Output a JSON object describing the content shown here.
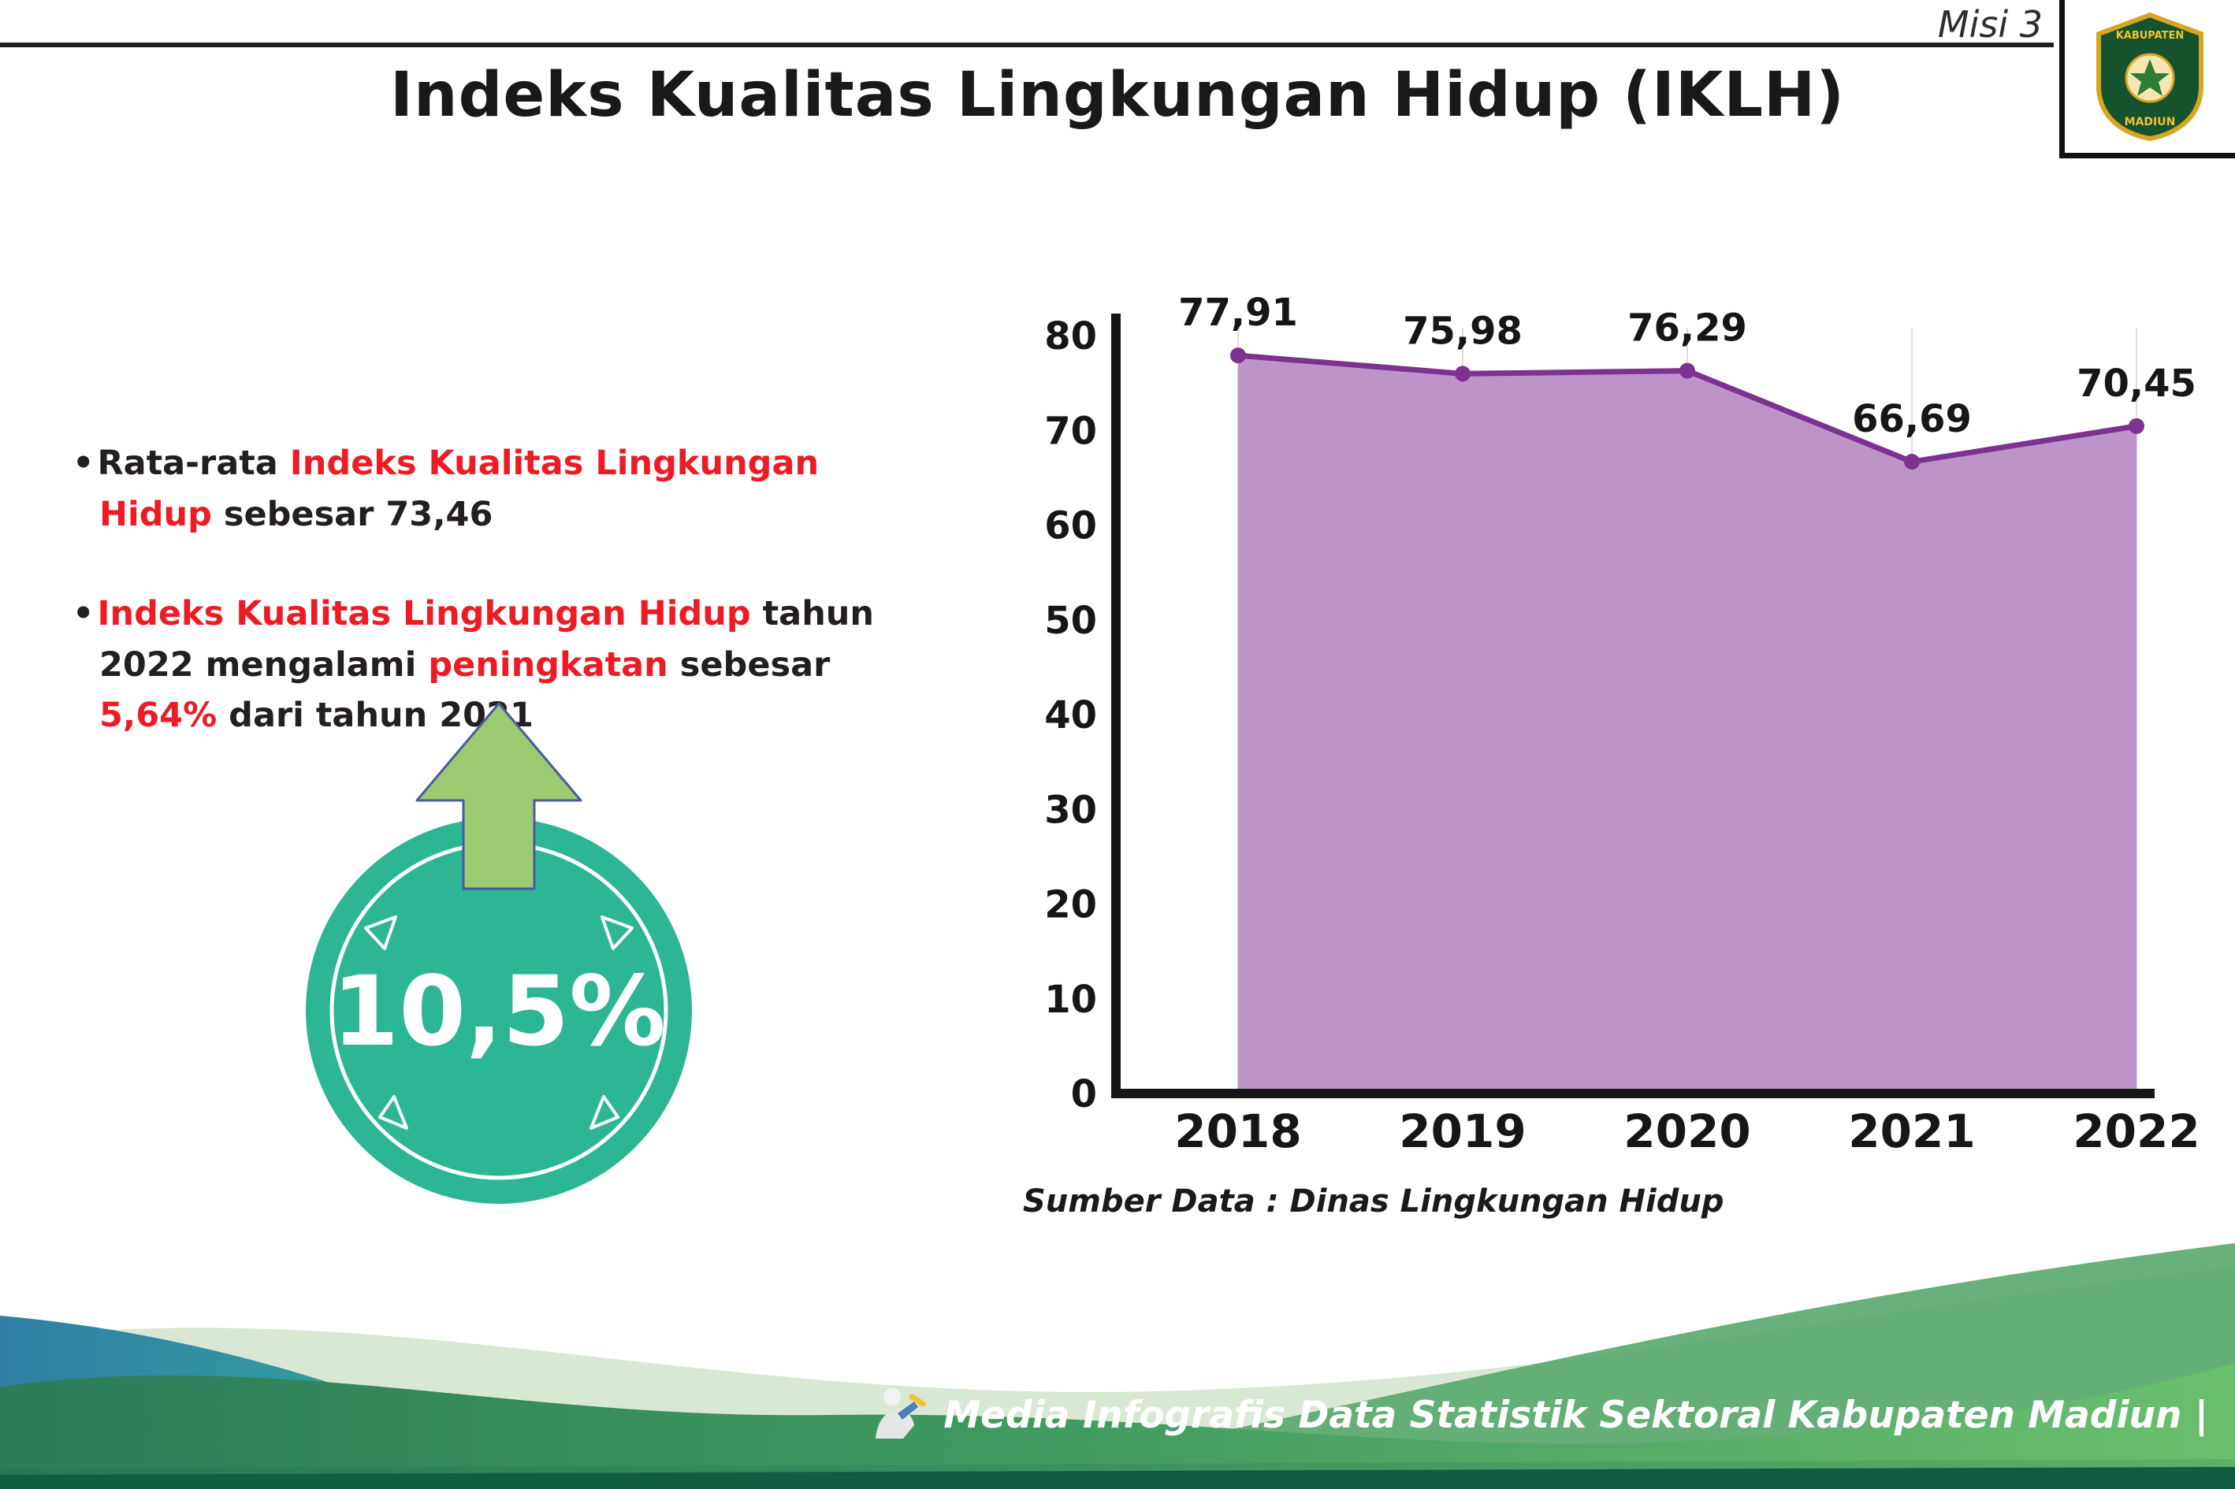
{
  "header": {
    "misi": "Misi 3",
    "title": "Indeks Kualitas Lingkungan Hidup (IKLH)",
    "logo_top": "KABUPATEN",
    "logo_bottom": "MADIUN"
  },
  "colors": {
    "red": "#ed1c24",
    "dark": "#231f20",
    "teal_circle": "#2cb694",
    "arrow_green": "#9cca70",
    "area_fill": "#bd93c8",
    "line_purple": "#7d3190",
    "axis_black": "#161616",
    "band_green": "#2d8556"
  },
  "bullets": [
    {
      "segments": [
        {
          "text": "Rata-rata ",
          "style": "dark"
        },
        {
          "text": "Indeks Kualitas Lingkungan Hidup",
          "style": "red"
        },
        {
          "text": " sebesar 73,46",
          "style": "dark"
        }
      ]
    },
    {
      "segments": [
        {
          "text": "Indeks Kualitas Lingkungan Hidup",
          "style": "red"
        },
        {
          "text": " tahun 2022 mengalami ",
          "style": "dark"
        },
        {
          "text": "peningkatan",
          "style": "red"
        },
        {
          "text": " sebesar ",
          "style": "dark"
        },
        {
          "text": "5,64%",
          "style": "red"
        },
        {
          "text": " dari tahun 2021",
          "style": "dark"
        }
      ]
    }
  ],
  "badge": {
    "value": "10,5%"
  },
  "chart_data": {
    "type": "area",
    "categories": [
      "2018",
      "2019",
      "2020",
      "2021",
      "2022"
    ],
    "series": [
      {
        "name": "IKLH",
        "values": [
          77.91,
          75.98,
          76.29,
          66.69,
          70.45
        ]
      }
    ],
    "value_labels": [
      "77,91",
      "75,98",
      "76,29",
      "66,69",
      "70,45"
    ],
    "title": "",
    "xlabel": "",
    "ylabel": "",
    "ylim": [
      0,
      80
    ],
    "yticks": [
      0,
      10,
      20,
      30,
      40,
      50,
      60,
      70,
      80
    ],
    "grid": "vertical-light",
    "legend": "none"
  },
  "source": {
    "label": "Sumber Data : Dinas Lingkungan Hidup"
  },
  "footer": {
    "text": "Media Infografis Data Statistik Sektoral Kabupaten Madiun |"
  }
}
